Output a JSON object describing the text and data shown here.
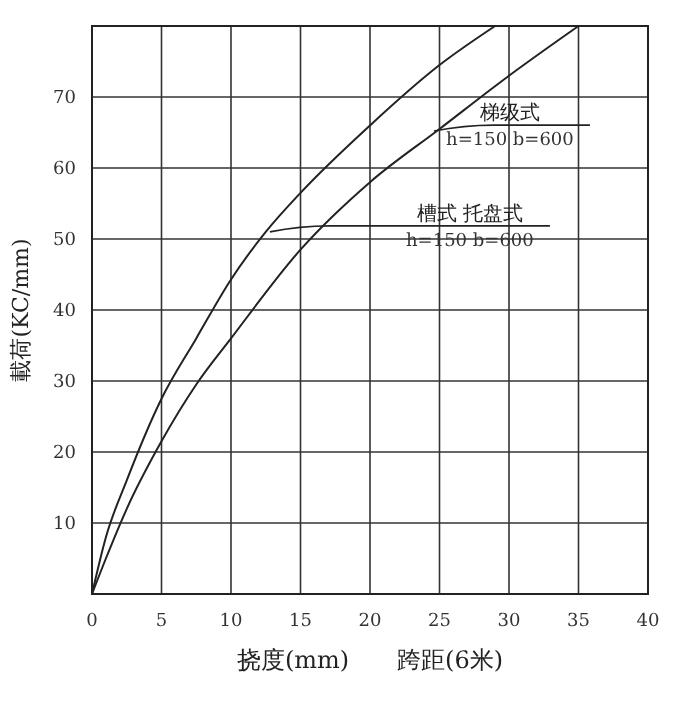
{
  "chart_data": {
    "type": "line",
    "xlabel": "挠度(mm)　　跨距(6米)",
    "ylabel": "載荷(KC/mm)",
    "xlim": [
      0,
      40
    ],
    "xticks": [
      0,
      5,
      10,
      15,
      20,
      25,
      30,
      35,
      40
    ],
    "ylim": [
      0,
      80
    ],
    "yticks": [
      {
        "value": 0,
        "label": null
      },
      10,
      20,
      30,
      40,
      50,
      60,
      70,
      {
        "value": 80,
        "label": null
      }
    ],
    "grid": true,
    "marker": "none",
    "line_style": "solid",
    "series": [
      {
        "color": "#222222",
        "x": [
          0,
          1,
          2.5,
          5,
          7.5,
          10,
          12.5,
          15,
          20,
          25,
          29
        ],
        "values": [
          0,
          8,
          16,
          27.5,
          36,
          44.3,
          51,
          56.5,
          66,
          74.5,
          80
        ]
      },
      {
        "color": "#222222",
        "x": [
          0,
          1,
          2.5,
          5,
          7.5,
          10,
          15,
          20,
          25,
          30,
          35
        ],
        "values": [
          0,
          5,
          12,
          21.5,
          29.5,
          36,
          48.5,
          58,
          65.5,
          73,
          80
        ]
      }
    ],
    "annotations": [
      {
        "text": "梯级式\nh=150 b=600",
        "x": 24.6,
        "y": 65.2
      },
      {
        "text": "槽式  托盘式\nh=150 b=600",
        "x": 12.8,
        "y": 51
      }
    ]
  }
}
